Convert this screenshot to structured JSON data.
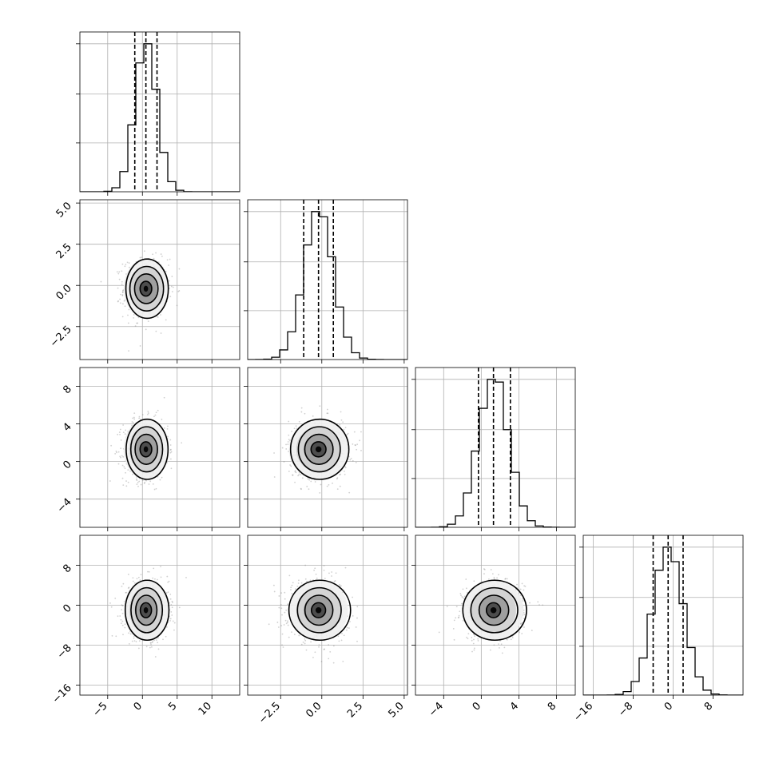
{
  "chart_data": {
    "type": "scatter",
    "kind": "corner-plot",
    "title": "",
    "parameters": 4,
    "axis_labels": [
      "",
      "",
      "",
      ""
    ],
    "ranges": [
      [
        -9,
        14
      ],
      [
        -4.5,
        5.2
      ],
      [
        -7,
        10
      ],
      [
        -18,
        14
      ]
    ],
    "means": [
      0.5,
      -0.2,
      1.3,
      -1.0
    ],
    "stds": [
      1.6,
      0.9,
      1.6,
      3.0
    ],
    "quantiles": [
      [
        -1.1,
        0.5,
        2.1
      ],
      [
        -1.1,
        -0.2,
        0.7
      ],
      [
        -0.3,
        1.3,
        3.1
      ],
      [
        -4.0,
        -1.0,
        2.0
      ]
    ],
    "ticks": [
      [
        -5,
        0,
        5,
        10
      ],
      [
        -2.5,
        0.0,
        2.5,
        5.0
      ],
      [
        -4,
        0,
        4,
        8
      ],
      [
        -16,
        -8,
        0,
        8
      ]
    ],
    "tick_labels": [
      [
        "−5",
        "0",
        "5",
        "10"
      ],
      [
        "−2.5",
        "0.0",
        "2.5",
        "5.0"
      ],
      [
        "−4",
        "0",
        "4",
        "8"
      ],
      [
        "−16",
        "−8",
        "0",
        "8"
      ]
    ],
    "grid": true,
    "legend": "none",
    "colors": {
      "line": "#000000",
      "scatter": "#777777",
      "grid": "#b0b0b0"
    }
  }
}
